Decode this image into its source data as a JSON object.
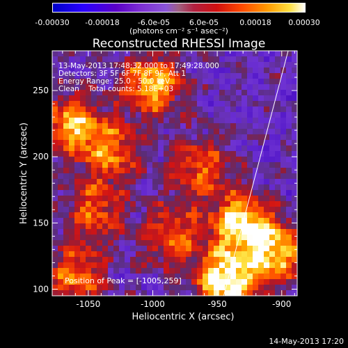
{
  "colorbar": {
    "tick_labels": [
      "-0.00030",
      "-0.00018",
      "-6.0e-05",
      "6.0e-05",
      "0.00018",
      "0.00030"
    ],
    "tick_values": [
      -0.0003,
      -0.00018,
      -6e-05,
      6e-05,
      0.00018,
      0.0003
    ],
    "units": "(photons cm⁻² s⁻¹ asec⁻²)",
    "range": [
      -0.0003,
      0.0003
    ],
    "colormap": "blue-purple-red-orange-yellow-white"
  },
  "chart_data": {
    "type": "heatmap",
    "title": "Reconstructed RHESSI Image",
    "xlabel": "Heliocentric X (arcsec)",
    "ylabel": "Heliocentric Y (arcsec)",
    "xlim": [
      -1078,
      -888
    ],
    "ylim": [
      95,
      280
    ],
    "xticks": [
      -1050,
      -1000,
      -950,
      -900
    ],
    "xtick_labels": [
      "-1050",
      "-1000",
      "-950",
      "-900"
    ],
    "yticks": [
      100,
      150,
      200,
      250
    ],
    "ytick_labels": [
      "100",
      "150",
      "200",
      "250"
    ],
    "peak": {
      "x": -1005,
      "y": 259,
      "label": "Position of Peak = [-1005,259]"
    },
    "limb_line": [
      {
        "x": -945,
        "y": 95
      },
      {
        "x": -895,
        "y": 280
      }
    ],
    "info_lines": [
      "13-May-2013 17:48:32.000 to 17:49:28.000",
      "Detectors: 3F 5F 6F 7F 8F 9F, Att 1",
      "Energy Range: 25.0 - 50.0 keV",
      "Clean    Total counts: 5.18E+03"
    ],
    "bright_regions": [
      {
        "x": -943,
        "y": 106,
        "intensity": 1.0
      },
      {
        "x": -932,
        "y": 150,
        "intensity": 0.85
      },
      {
        "x": -905,
        "y": 128,
        "intensity": 0.8
      },
      {
        "x": -1000,
        "y": 255,
        "intensity": 0.8
      },
      {
        "x": -1063,
        "y": 225,
        "intensity": 0.7
      },
      {
        "x": -1033,
        "y": 205,
        "intensity": 0.6
      },
      {
        "x": -963,
        "y": 192,
        "intensity": 0.55
      },
      {
        "x": -1045,
        "y": 160,
        "intensity": 0.55
      },
      {
        "x": -985,
        "y": 140,
        "intensity": 0.55
      },
      {
        "x": -1060,
        "y": 110,
        "intensity": 0.6
      }
    ]
  },
  "footer": {
    "date": "14-May-2013 17:20"
  }
}
